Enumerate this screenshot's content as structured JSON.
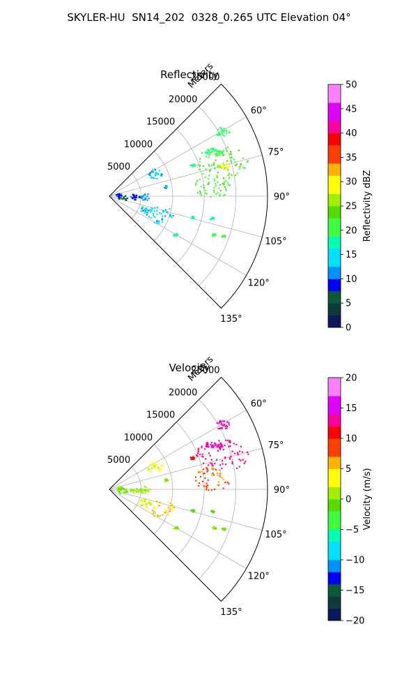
{
  "figure": {
    "suptitle": "SKYLER-HU  SN14_202  0328_0.265 UTC Elevation 04°"
  },
  "chart_data": [
    {
      "type": "polar-sector",
      "title": "Reflectivity",
      "range_label": "Meters",
      "radial_ticks": [
        5000,
        10000,
        15000,
        20000,
        25000
      ],
      "radial_tick_labels": [
        "5000",
        "10000",
        "15000",
        "20000",
        "25000"
      ],
      "rmax": 25000,
      "theta_ticks_deg": [
        60,
        75,
        90,
        105,
        120,
        135
      ],
      "theta_tick_labels": [
        "60°",
        "75°",
        "90°",
        "105°",
        "120°",
        "135°"
      ],
      "theta_range_deg": [
        45,
        135
      ],
      "grid": true,
      "colorbar": {
        "label": "Reflectivity dBZ",
        "vmin": 0,
        "vmax": 50,
        "ticks": [
          0,
          5,
          10,
          15,
          20,
          25,
          30,
          35,
          40,
          45,
          50
        ],
        "tick_labels": [
          "0",
          "5",
          "10",
          "15",
          "20",
          "25",
          "30",
          "35",
          "40",
          "45",
          "50"
        ],
        "stops": [
          [
            0,
            "#0b1a5c"
          ],
          [
            0.06,
            "#0d3b3b"
          ],
          [
            0.1,
            "#0a5a3a"
          ],
          [
            0.14,
            "#0000ff"
          ],
          [
            0.2,
            "#0090ff"
          ],
          [
            0.26,
            "#00e0ff"
          ],
          [
            0.32,
            "#00ffb0"
          ],
          [
            0.38,
            "#40ff40"
          ],
          [
            0.44,
            "#55dd00"
          ],
          [
            0.5,
            "#a0f000"
          ],
          [
            0.56,
            "#ffff00"
          ],
          [
            0.62,
            "#ffb000"
          ],
          [
            0.68,
            "#ff4000"
          ],
          [
            0.74,
            "#ff0000"
          ],
          [
            0.8,
            "#ff00a0"
          ],
          [
            0.86,
            "#e000ff"
          ],
          [
            0.92,
            "#ff80ff"
          ],
          [
            1,
            "#fff0ff"
          ]
        ]
      },
      "echoes": [
        {
          "r": 18500,
          "theta": 73,
          "value": 22,
          "size": 3200
        },
        {
          "r": 18800,
          "theta": 75,
          "value": 28,
          "size": 700
        },
        {
          "r": 16200,
          "theta": 84,
          "value": 21,
          "size": 2300
        },
        {
          "r": 20500,
          "theta": 60,
          "value": 20,
          "size": 900
        },
        {
          "r": 17500,
          "theta": 66,
          "value": 19,
          "size": 700
        },
        {
          "r": 18500,
          "theta": 68,
          "value": 20,
          "size": 500
        },
        {
          "r": 14000,
          "theta": 69,
          "value": 20,
          "size": 300
        },
        {
          "r": 8000,
          "theta": 63,
          "value": 13,
          "size": 1000
        },
        {
          "r": 5500,
          "theta": 90,
          "value": 12,
          "size": 700
        },
        {
          "r": 4000,
          "theta": 90,
          "value": 9,
          "size": 600
        },
        {
          "r": 8500,
          "theta": 110,
          "value": 14,
          "size": 1700
        },
        {
          "r": 6000,
          "theta": 110,
          "value": 13,
          "size": 800
        },
        {
          "r": 2000,
          "theta": 95,
          "value": 6,
          "size": 600
        },
        {
          "r": 1500,
          "theta": 80,
          "value": 9,
          "size": 400
        },
        {
          "r": 13500,
          "theta": 104,
          "value": 18,
          "size": 250
        },
        {
          "r": 16500,
          "theta": 102,
          "value": 17,
          "size": 250
        },
        {
          "r": 17500,
          "theta": 110,
          "value": 20,
          "size": 250
        },
        {
          "r": 19000,
          "theta": 109,
          "value": 21,
          "size": 250
        },
        {
          "r": 12000,
          "theta": 120,
          "value": 18,
          "size": 300
        },
        {
          "r": 9000,
          "theta": 80,
          "value": 13,
          "size": 250
        }
      ]
    },
    {
      "type": "polar-sector",
      "title": "Velocity",
      "range_label": "Meters",
      "radial_ticks": [
        5000,
        10000,
        15000,
        20000,
        25000
      ],
      "radial_tick_labels": [
        "5000",
        "10000",
        "15000",
        "20000",
        "25000"
      ],
      "rmax": 25000,
      "theta_ticks_deg": [
        60,
        75,
        90,
        105,
        120,
        135
      ],
      "theta_tick_labels": [
        "60°",
        "75°",
        "90°",
        "105°",
        "120°",
        "135°"
      ],
      "theta_range_deg": [
        45,
        135
      ],
      "grid": true,
      "colorbar": {
        "label": "Velocity (m/s)",
        "vmin": -20,
        "vmax": 20,
        "ticks": [
          -20,
          -15,
          -10,
          -5,
          0,
          5,
          10,
          15,
          20
        ],
        "tick_labels": [
          "−20",
          "−15",
          "−10",
          "−5",
          "0",
          "5",
          "10",
          "15",
          "20"
        ],
        "stops": [
          [
            0,
            "#0b1a5c"
          ],
          [
            0.06,
            "#0d3b3b"
          ],
          [
            0.1,
            "#0a5a3a"
          ],
          [
            0.14,
            "#0000ff"
          ],
          [
            0.2,
            "#0090ff"
          ],
          [
            0.26,
            "#00e0ff"
          ],
          [
            0.32,
            "#00ffb0"
          ],
          [
            0.38,
            "#40ff40"
          ],
          [
            0.44,
            "#55dd00"
          ],
          [
            0.5,
            "#a0f000"
          ],
          [
            0.56,
            "#ffff00"
          ],
          [
            0.62,
            "#ffb000"
          ],
          [
            0.68,
            "#ff4000"
          ],
          [
            0.74,
            "#ff0000"
          ],
          [
            0.8,
            "#ff00a0"
          ],
          [
            0.86,
            "#e000ff"
          ],
          [
            0.92,
            "#ff80ff"
          ],
          [
            1,
            "#fff0ff"
          ]
        ]
      },
      "echoes": [
        {
          "r": 18500,
          "theta": 73,
          "value": 13,
          "size": 3200
        },
        {
          "r": 16200,
          "theta": 84,
          "value": 8,
          "size": 2300
        },
        {
          "r": 20500,
          "theta": 60,
          "value": 14,
          "size": 900
        },
        {
          "r": 17500,
          "theta": 66,
          "value": 14,
          "size": 700
        },
        {
          "r": 18500,
          "theta": 68,
          "value": 14,
          "size": 500
        },
        {
          "r": 14000,
          "theta": 69,
          "value": 11,
          "size": 300
        },
        {
          "r": 8000,
          "theta": 63,
          "value": 3,
          "size": 1000
        },
        {
          "r": 5500,
          "theta": 90,
          "value": 1,
          "size": 700
        },
        {
          "r": 4000,
          "theta": 90,
          "value": 1,
          "size": 600
        },
        {
          "r": 8500,
          "theta": 110,
          "value": 5,
          "size": 1700
        },
        {
          "r": 6000,
          "theta": 110,
          "value": 2,
          "size": 800
        },
        {
          "r": 2000,
          "theta": 95,
          "value": 0,
          "size": 600
        },
        {
          "r": 1500,
          "theta": 80,
          "value": 0,
          "size": 400
        },
        {
          "r": 13500,
          "theta": 104,
          "value": -2,
          "size": 250
        },
        {
          "r": 16500,
          "theta": 102,
          "value": -1,
          "size": 250
        },
        {
          "r": 17500,
          "theta": 110,
          "value": 0,
          "size": 250
        },
        {
          "r": 19000,
          "theta": 109,
          "value": 0,
          "size": 250
        },
        {
          "r": 12000,
          "theta": 120,
          "value": 0,
          "size": 300
        },
        {
          "r": 9000,
          "theta": 80,
          "value": 0,
          "size": 250
        }
      ]
    }
  ]
}
